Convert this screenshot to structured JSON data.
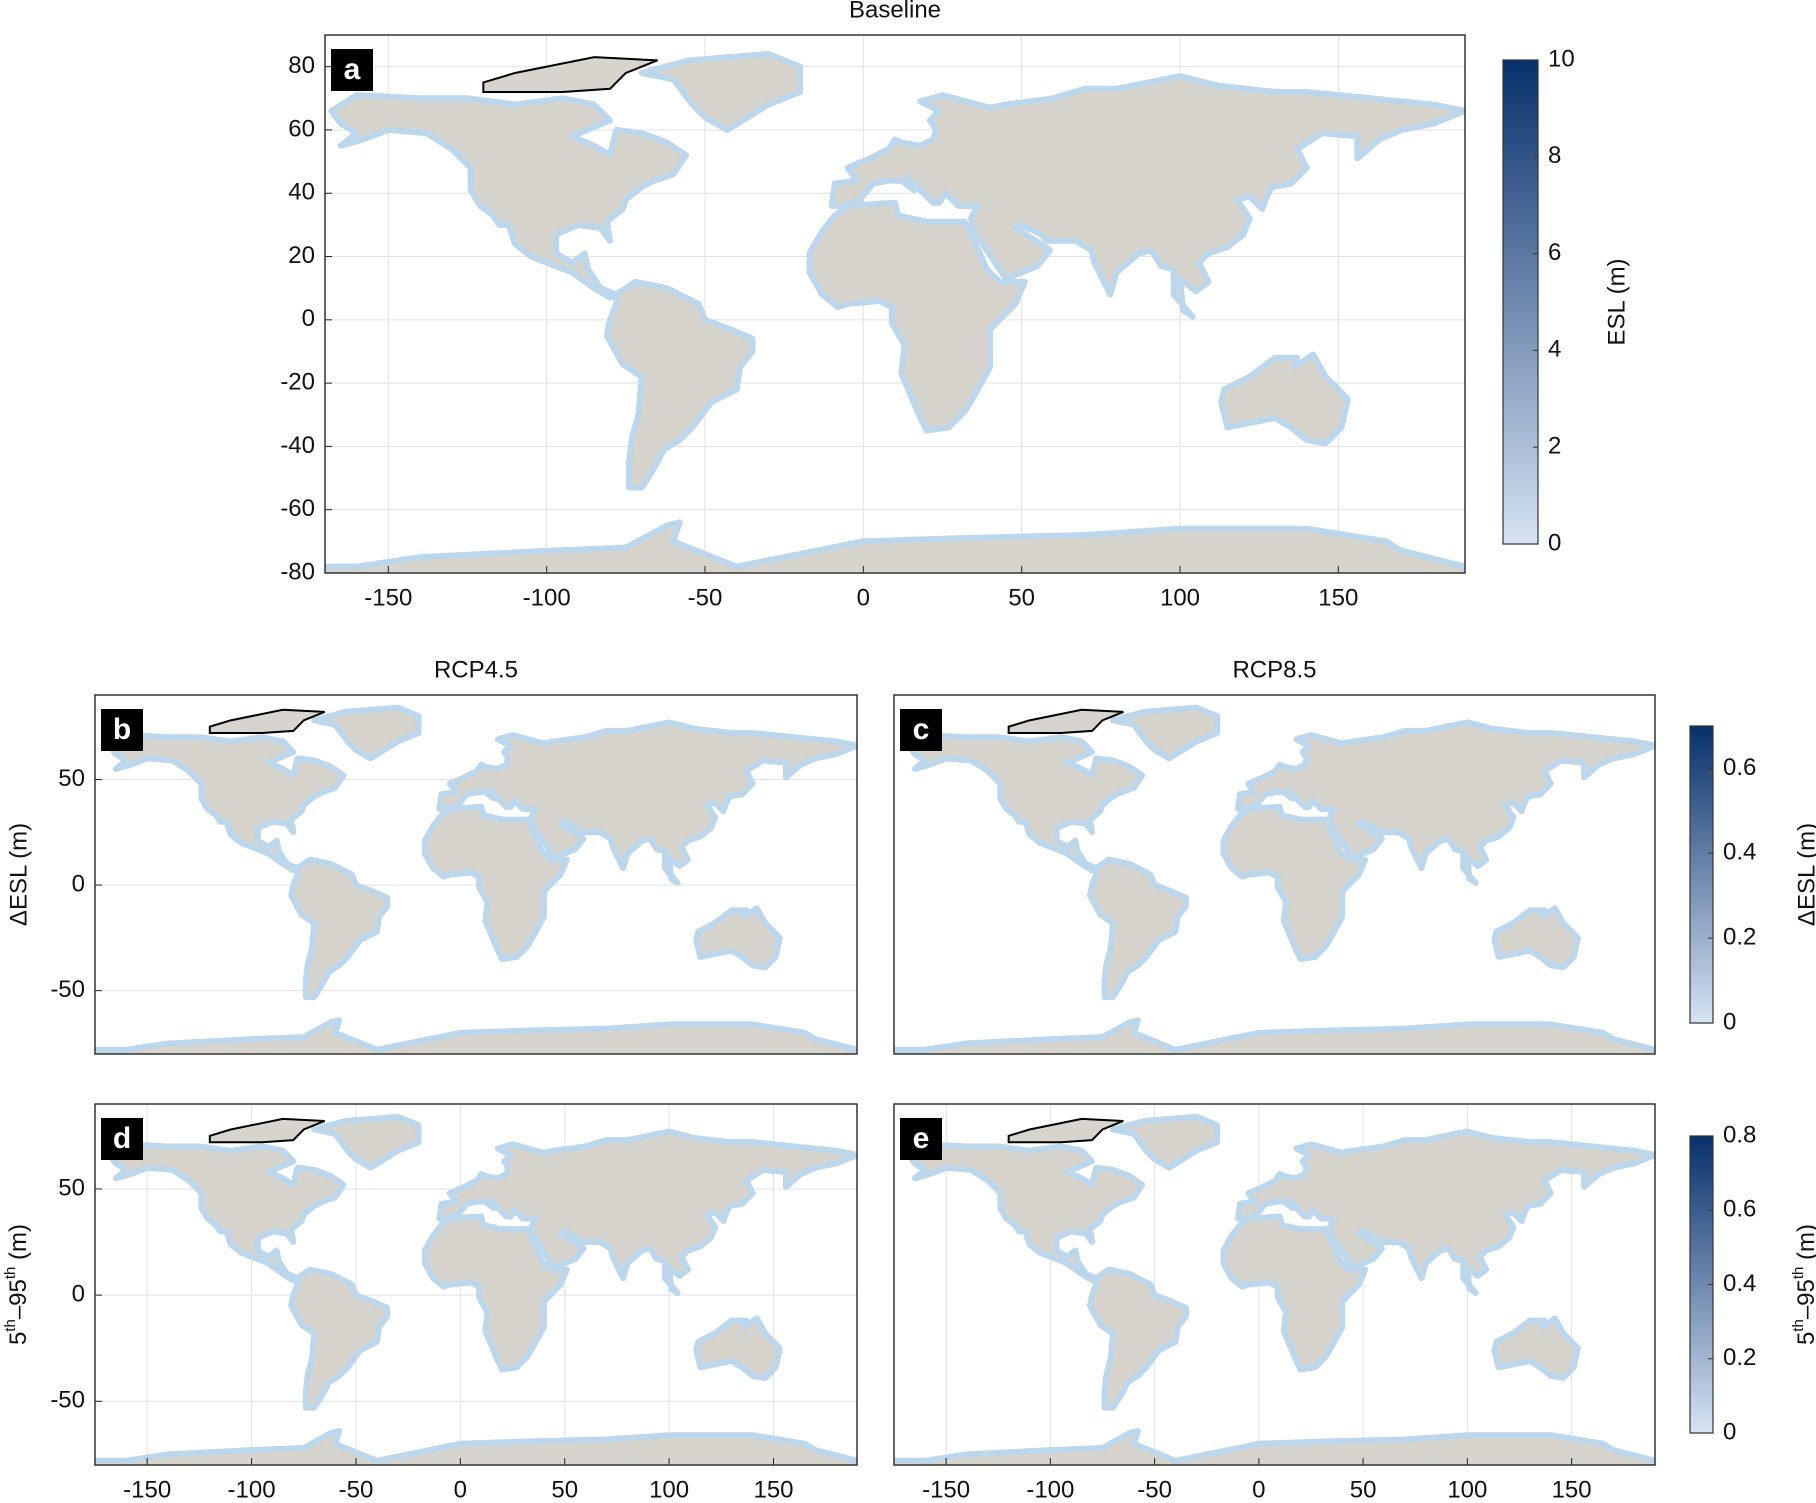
{
  "panels": [
    {
      "letter": "a",
      "title": "Baseline",
      "xlim": [
        -170,
        190
      ],
      "ylim": [
        -80,
        90
      ],
      "xticks": [
        -150,
        -100,
        -50,
        0,
        50,
        100,
        150
      ],
      "yticks": [
        -80,
        -60,
        -40,
        -20,
        0,
        20,
        40,
        60,
        80
      ],
      "grid": true
    },
    {
      "letter": "b",
      "title": "RCP4.5",
      "ylabel": "ΔESL (m)",
      "xlim": [
        -175,
        190
      ],
      "ylim": [
        -80,
        90
      ],
      "yticks": [
        -50,
        0,
        50
      ],
      "grid": true
    },
    {
      "letter": "c",
      "title": "RCP8.5",
      "xlim": [
        -175,
        190
      ],
      "ylim": [
        -80,
        90
      ],
      "grid": true
    },
    {
      "letter": "d",
      "ylabel_parts": [
        "5",
        "th",
        "–95",
        "th",
        " (m)"
      ],
      "xlim": [
        -175,
        190
      ],
      "ylim": [
        -80,
        90
      ],
      "xticks": [
        -150,
        -100,
        -50,
        0,
        50,
        100,
        150
      ],
      "yticks": [
        -50,
        0,
        50
      ],
      "grid": true
    },
    {
      "letter": "e",
      "xlim": [
        -175,
        190
      ],
      "ylim": [
        -80,
        90
      ],
      "xticks": [
        -150,
        -100,
        -50,
        0,
        50,
        100,
        150
      ],
      "grid": true
    }
  ],
  "colorbars": [
    {
      "label": "ESL (m)",
      "lim": [
        0,
        10
      ],
      "ticks": [
        0,
        2,
        4,
        6,
        8,
        10
      ],
      "colors": [
        "#d6e3f3",
        "#08306b"
      ]
    },
    {
      "label": "ΔESL (m)",
      "lim": [
        0,
        0.7
      ],
      "ticks": [
        0,
        0.2,
        0.4,
        0.6
      ],
      "colors": [
        "#d6e3f3",
        "#08306b"
      ]
    },
    {
      "label_parts": [
        "5",
        "th",
        "–95",
        "th",
        " (m)"
      ],
      "lim": [
        0,
        0.8
      ],
      "ticks": [
        0,
        0.2,
        0.4,
        0.6,
        0.8
      ],
      "colors": [
        "#d6e3f3",
        "#08306b"
      ]
    }
  ]
}
